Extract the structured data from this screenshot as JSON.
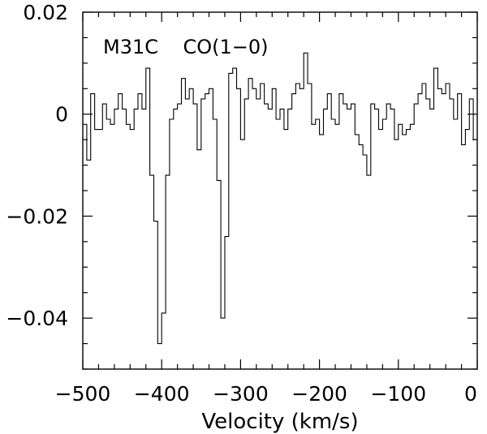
{
  "chart_data": {
    "type": "line",
    "style": "step",
    "title": "M31C    CO(1−0)",
    "xlabel": "Velocity (km/s)",
    "ylabel": "",
    "xlim": [
      -500,
      0
    ],
    "ylim": [
      -0.05,
      0.02
    ],
    "xticks": [
      -500,
      -400,
      -300,
      -200,
      -100,
      0
    ],
    "xtick_labels": [
      "−500",
      "−400",
      "−300",
      "−200",
      "−100",
      "0"
    ],
    "yticks": [
      0.02,
      0,
      -0.02,
      -0.04
    ],
    "ytick_labels": [
      "0.02",
      "0",
      "−0.02",
      "−0.04"
    ],
    "grid": false,
    "line_color": "#000000",
    "x": [
      -500,
      -495,
      -490,
      -485,
      -480,
      -475,
      -470,
      -465,
      -460,
      -455,
      -450,
      -445,
      -440,
      -435,
      -430,
      -425,
      -420,
      -415,
      -410,
      -405,
      -400,
      -395,
      -390,
      -385,
      -380,
      -375,
      -370,
      -365,
      -360,
      -355,
      -350,
      -345,
      -340,
      -335,
      -330,
      -325,
      -320,
      -315,
      -310,
      -305,
      -300,
      -295,
      -290,
      -285,
      -280,
      -275,
      -270,
      -265,
      -260,
      -255,
      -250,
      -245,
      -240,
      -235,
      -230,
      -225,
      -220,
      -215,
      -210,
      -205,
      -200,
      -195,
      -190,
      -185,
      -180,
      -175,
      -170,
      -165,
      -160,
      -155,
      -150,
      -145,
      -140,
      -135,
      -130,
      -125,
      -120,
      -115,
      -110,
      -105,
      -100,
      -95,
      -90,
      -85,
      -80,
      -75,
      -70,
      -65,
      -60,
      -55,
      -50,
      -45,
      -40,
      -35,
      -30,
      -25,
      -20,
      -15,
      -10,
      -5
    ],
    "y": [
      -0.002,
      -0.009,
      0.004,
      -0.003,
      -0.003,
      0.002,
      -0.001,
      -0.002,
      0.001,
      0.004,
      0.001,
      -0.002,
      -0.003,
      0.001,
      0.004,
      0.001,
      0.009,
      -0.012,
      -0.021,
      -0.045,
      -0.039,
      -0.012,
      -0.001,
      0.001,
      0.002,
      0.007,
      0.003,
      0.005,
      0.002,
      -0.007,
      0.003,
      0.004,
      0.005,
      -0.001,
      -0.013,
      -0.04,
      -0.024,
      0.008,
      0.009,
      0.005,
      -0.005,
      0.003,
      0.007,
      0.005,
      0.003,
      0.006,
      0.002,
      0.001,
      0.005,
      -0.001,
      0.001,
      -0.003,
      0.001,
      0.004,
      0.006,
      0.005,
      0.012,
      0.006,
      -0.002,
      -0.001,
      -0.004,
      0.001,
      0.004,
      -0.001,
      -0.002,
      0.004,
      0.002,
      0.001,
      0.002,
      -0.004,
      -0.006,
      -0.008,
      -0.012,
      0.002,
      0.001,
      -0.003,
      -0.001,
      0.002,
      0.001,
      -0.005,
      -0.002,
      -0.004,
      -0.003,
      -0.002,
      0.002,
      0.004,
      0.006,
      0.003,
      0.001,
      0.009,
      0.005,
      0.004,
      0.006,
      0.003,
      -0.001,
      0.004,
      -0.006,
      -0.003,
      0.003,
      -0.005
    ]
  }
}
